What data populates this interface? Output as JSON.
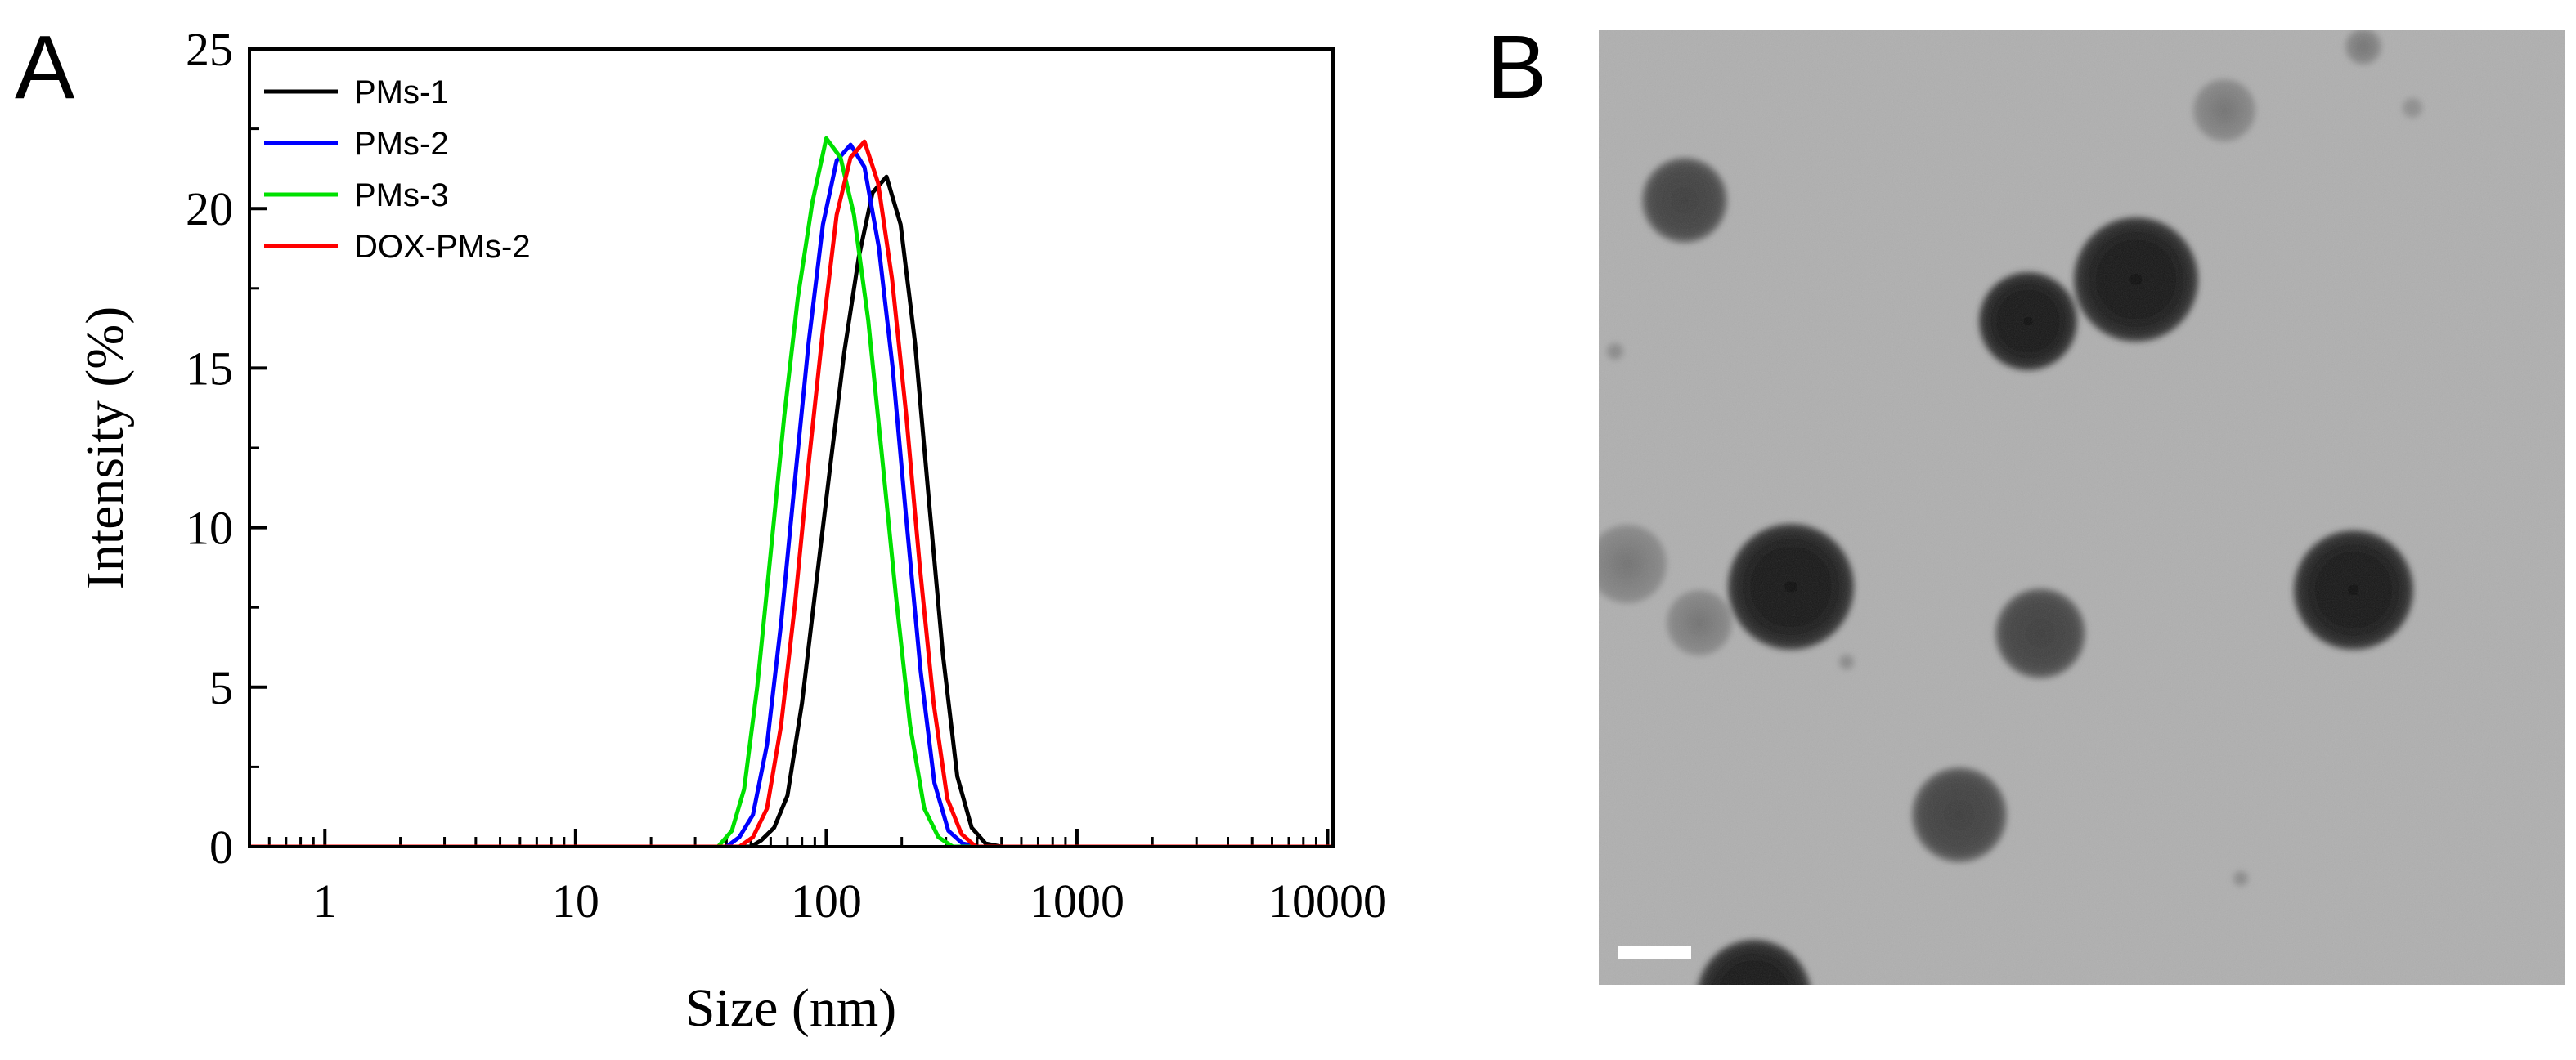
{
  "panels": {
    "a_label": "A",
    "b_label": "B"
  },
  "colors": {
    "PMs-1": "#000000",
    "PMs-2": "#0000ff",
    "PMs-3": "#00e000",
    "DOX-PMs-2": "#ff0000"
  },
  "chart_data": {
    "type": "line",
    "xscale": "log",
    "xlabel": "Size (nm)",
    "ylabel": "Intensity (%)",
    "xlim": [
      0.5,
      10500
    ],
    "ylim": [
      0,
      25
    ],
    "xticks": [
      1,
      10,
      100,
      1000,
      10000
    ],
    "xtick_labels": [
      "1",
      "10",
      "100",
      "1000",
      "10000"
    ],
    "yticks": [
      0,
      5,
      10,
      15,
      20,
      25
    ],
    "ytick_labels": [
      "0",
      "5",
      "10",
      "15",
      "20",
      "25"
    ],
    "legend_position": "top-left",
    "series": [
      {
        "name": "PMs-1",
        "color": "#000000",
        "x": [
          0.5,
          50,
          55,
          62,
          70,
          80,
          91,
          104,
          118,
          135,
          153,
          174,
          198,
          226,
          257,
          292,
          333,
          380,
          432,
          500,
          10500
        ],
        "y": [
          0,
          0,
          0.2,
          0.6,
          1.6,
          4.5,
          8.2,
          12.0,
          15.5,
          18.5,
          20.5,
          21.0,
          19.5,
          15.8,
          10.8,
          6.0,
          2.2,
          0.6,
          0.1,
          0,
          0
        ]
      },
      {
        "name": "PMs-2",
        "color": "#0000ff",
        "x": [
          0.5,
          40,
          45,
          51,
          58,
          66,
          75,
          85,
          97,
          110,
          125,
          142,
          162,
          184,
          209,
          238,
          270,
          307,
          350,
          400,
          10500
        ],
        "y": [
          0,
          0,
          0.3,
          1.0,
          3.2,
          7.0,
          11.5,
          15.8,
          19.5,
          21.5,
          22.0,
          21.3,
          18.8,
          15.0,
          10.2,
          5.5,
          2.0,
          0.5,
          0.1,
          0,
          0
        ]
      },
      {
        "name": "PMs-3",
        "color": "#00e000",
        "x": [
          0.5,
          37,
          42,
          47,
          53,
          60,
          68,
          77,
          88,
          100,
          114,
          129,
          147,
          167,
          190,
          216,
          246,
          280,
          320,
          10500
        ],
        "y": [
          0,
          0,
          0.5,
          1.8,
          5.0,
          9.2,
          13.5,
          17.2,
          20.2,
          22.2,
          21.6,
          19.8,
          16.5,
          12.2,
          7.8,
          3.8,
          1.2,
          0.3,
          0,
          0
        ]
      },
      {
        "name": "DOX-PMs-2",
        "color": "#ff0000",
        "x": [
          0.5,
          45,
          51,
          58,
          66,
          75,
          85,
          97,
          110,
          125,
          142,
          161,
          183,
          208,
          236,
          268,
          304,
          346,
          395,
          10500
        ],
        "y": [
          0,
          0,
          0.3,
          1.2,
          3.8,
          7.6,
          12.0,
          16.2,
          19.8,
          21.6,
          22.1,
          20.8,
          17.8,
          13.6,
          8.8,
          4.5,
          1.5,
          0.4,
          0,
          0
        ]
      }
    ]
  },
  "micrograph": {
    "background_color": "#b9b9b9",
    "particle_color": "#1b1b1b",
    "scale_bar_color": "#ffffff"
  }
}
